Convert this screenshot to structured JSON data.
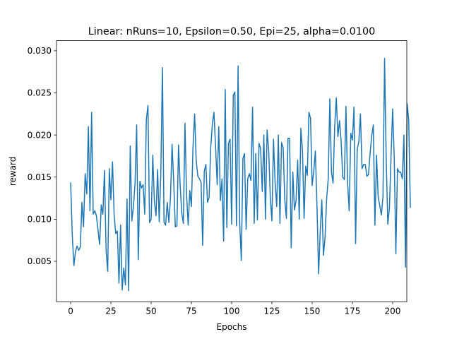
{
  "chart_data": {
    "type": "line",
    "title": "Linear: nRuns=10, Epsilon=0.50, Epi=25, alpha=0.0100",
    "xlabel": "Epochs",
    "ylabel": "reward",
    "xlim": [
      -8.8,
      208.8
    ],
    "ylim": [
      0.0002,
      0.0312
    ],
    "x_ticks": [
      0,
      25,
      50,
      75,
      100,
      125,
      150,
      175,
      200
    ],
    "x_tick_labels": [
      "0",
      "25",
      "50",
      "75",
      "100",
      "125",
      "150",
      "175",
      "200"
    ],
    "y_ticks": [
      0.005,
      0.01,
      0.015,
      0.02,
      0.025,
      0.03
    ],
    "y_tick_labels": [
      "0.005",
      "0.010",
      "0.015",
      "0.020",
      "0.025",
      "0.030"
    ],
    "grid": false,
    "series": [
      {
        "name": "reward",
        "color": "#1f77b4",
        "x_start": 0,
        "x_step": 1,
        "values": [
          0.0143,
          0.0081,
          0.0045,
          0.0062,
          0.0068,
          0.0063,
          0.0067,
          0.012,
          0.0091,
          0.0154,
          0.013,
          0.021,
          0.011,
          0.0227,
          0.0106,
          0.011,
          0.0104,
          0.0087,
          0.007,
          0.0117,
          0.0106,
          0.0158,
          0.0063,
          0.0038,
          0.016,
          0.0123,
          0.0168,
          0.0105,
          0.0083,
          0.0086,
          0.0024,
          0.0093,
          0.0016,
          0.0042,
          0.0022,
          0.0124,
          0.0015,
          0.0187,
          0.0098,
          0.0115,
          0.0143,
          0.0212,
          0.0052,
          0.0145,
          0.0137,
          0.0141,
          0.0106,
          0.0218,
          0.0235,
          0.0096,
          0.01,
          0.0176,
          0.0121,
          0.0104,
          0.0159,
          0.0097,
          0.0154,
          0.028,
          0.0096,
          0.0093,
          0.012,
          0.0096,
          0.0126,
          0.0189,
          0.0145,
          0.0091,
          0.0092,
          0.0188,
          0.0141,
          0.0107,
          0.0095,
          0.0214,
          0.0128,
          0.0093,
          0.0134,
          0.0115,
          0.0186,
          0.0225,
          0.0169,
          0.0151,
          0.0148,
          0.0144,
          0.0069,
          0.0157,
          0.0165,
          0.012,
          0.0126,
          0.0185,
          0.0213,
          0.0227,
          0.0187,
          0.0141,
          0.021,
          0.0122,
          0.0148,
          0.0074,
          0.0254,
          0.009,
          0.019,
          0.0195,
          0.0094,
          0.0247,
          0.0251,
          0.0092,
          0.0282,
          0.0096,
          0.0051,
          0.0172,
          0.0178,
          0.0088,
          0.0148,
          0.0154,
          0.0146,
          0.0233,
          0.0095,
          0.0178,
          0.0099,
          0.019,
          0.0184,
          0.0133,
          0.02,
          0.01,
          0.0206,
          0.0182,
          0.0126,
          0.0098,
          0.0195,
          0.0143,
          0.0115,
          0.02,
          0.0095,
          0.0191,
          0.0185,
          0.0123,
          0.0101,
          0.0196,
          0.0196,
          0.0066,
          0.0156,
          0.0111,
          0.0122,
          0.017,
          0.01,
          0.0208,
          0.0181,
          0.0101,
          0.0163,
          0.0152,
          0.0227,
          0.022,
          0.014,
          0.0157,
          0.0181,
          0.0116,
          0.0035,
          0.0084,
          0.0123,
          0.0057,
          0.0078,
          0.0124,
          0.0148,
          0.0243,
          0.0156,
          0.0143,
          0.021,
          0.0244,
          0.0198,
          0.0217,
          0.0193,
          0.015,
          0.0147,
          0.0234,
          0.0144,
          0.011,
          0.0202,
          0.0194,
          0.0233,
          0.0071,
          0.0183,
          0.0192,
          0.0225,
          0.016,
          0.0165,
          0.0165,
          0.0151,
          0.0153,
          0.0178,
          0.0199,
          0.0212,
          0.0093,
          0.0176,
          0.0127,
          0.0116,
          0.0105,
          0.0127,
          0.0291,
          0.0172,
          0.0094,
          0.0113,
          0.0174,
          0.0231,
          0.0173,
          0.0059,
          0.016,
          0.0156,
          0.0156,
          0.0148,
          0.02,
          0.0043,
          0.0237,
          0.0218,
          0.0114
        ]
      }
    ]
  }
}
